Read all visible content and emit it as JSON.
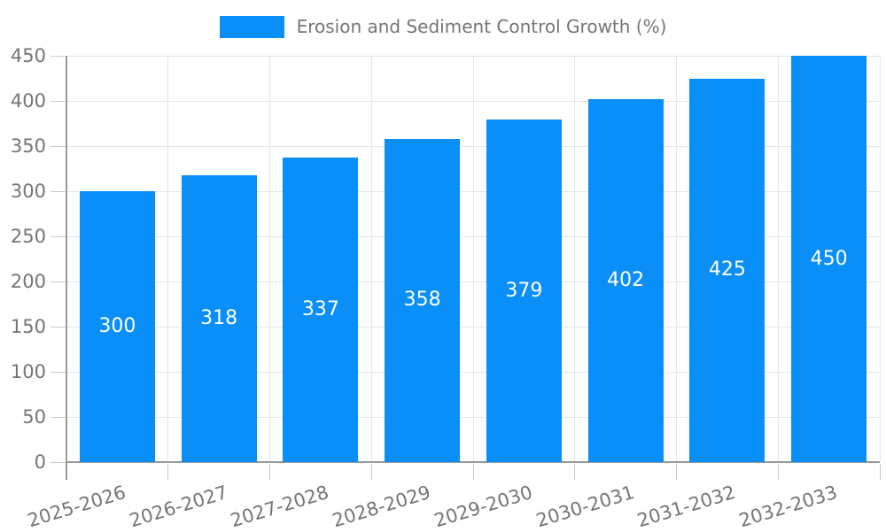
{
  "legend": {
    "label": "Erosion and Sediment Control Growth (%)"
  },
  "chart_data": {
    "type": "bar",
    "title": "Erosion and Sediment Control Growth (%)",
    "categories": [
      "2025-2026",
      "2026-2027",
      "2027-2028",
      "2028-2029",
      "2029-2030",
      "2030-2031",
      "2031-2032",
      "2032-2033"
    ],
    "values": [
      300,
      318,
      337,
      358,
      379,
      402,
      425,
      450
    ],
    "xlabel": "",
    "ylabel": "",
    "ylim": [
      0,
      450
    ],
    "ytick_step": 50,
    "grid": true,
    "legend_position": "top-center",
    "value_labels": "inside-center",
    "x_label_rotation_deg": -17
  },
  "colors": {
    "bar": "#0a8ef8",
    "grid": "#e6e6e6",
    "tick": "#c9c9c9",
    "axis": "#999999",
    "text": "#757575",
    "value_label": "#ffffff",
    "background": "#ffffff"
  }
}
